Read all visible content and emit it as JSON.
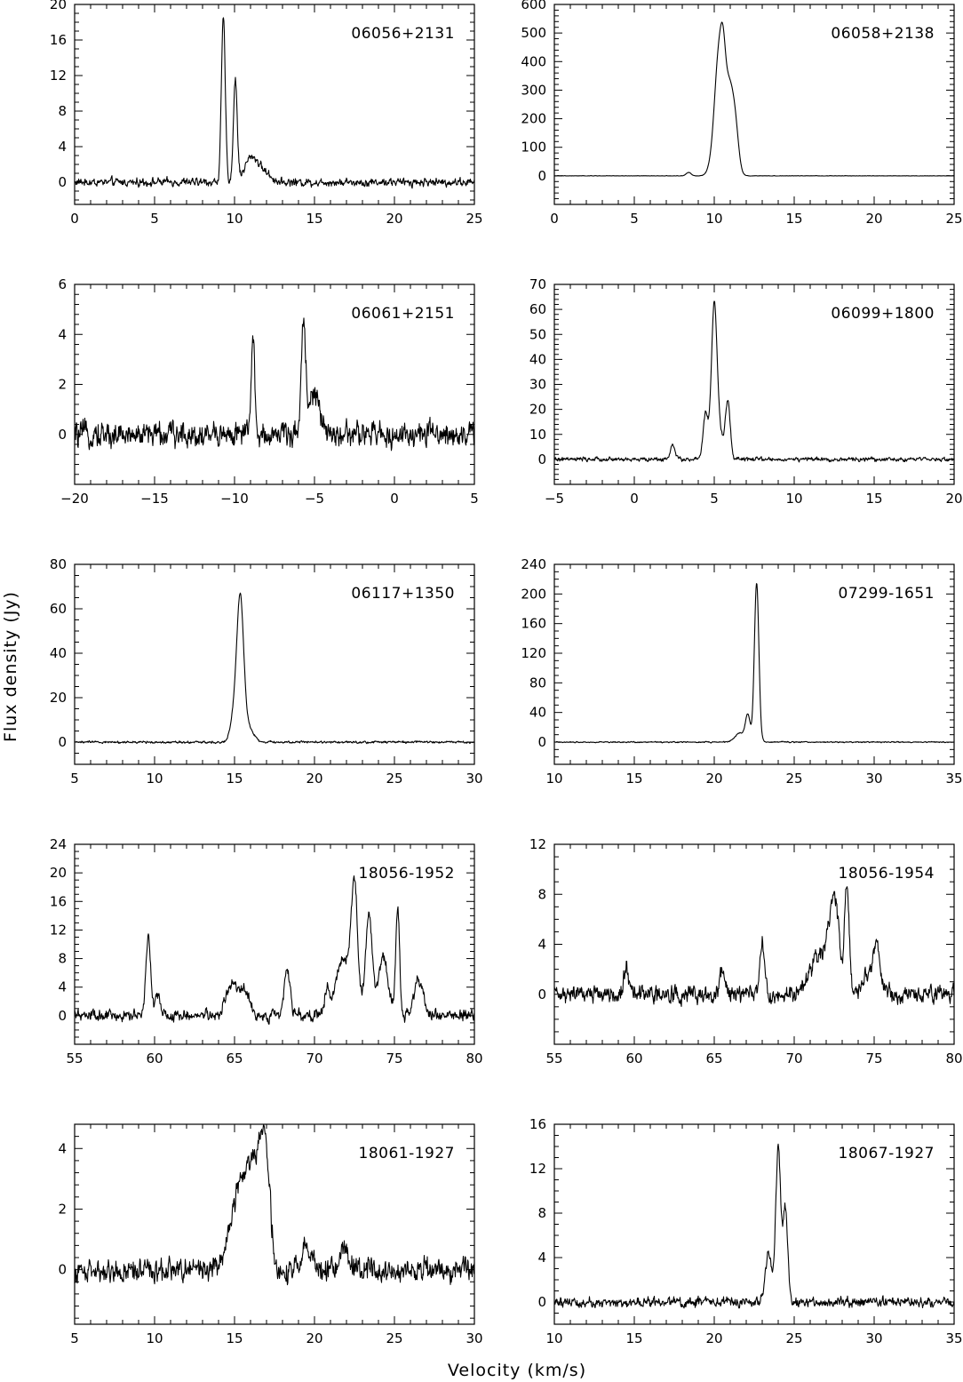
{
  "figure": {
    "xlabel": "Velocity (km/s)",
    "ylabel": "Flux density (Jy)"
  },
  "chart_data": [
    {
      "type": "line",
      "label": "06056+2131",
      "xlim": [
        0,
        25
      ],
      "ylim": [
        -2.5,
        20
      ],
      "xticks": [
        0,
        5,
        10,
        15,
        20,
        25
      ],
      "yticks": [
        0,
        4,
        8,
        12,
        16,
        20
      ],
      "noise": 0.45,
      "baseline": 0,
      "peaks": [
        [
          9.3,
          18.5,
          0.12
        ],
        [
          10.05,
          11.3,
          0.12
        ],
        [
          11.0,
          2.4,
          0.4
        ],
        [
          11.7,
          1.2,
          0.5
        ]
      ]
    },
    {
      "type": "line",
      "label": "06058+2138",
      "xlim": [
        0,
        25
      ],
      "ylim": [
        -100,
        600
      ],
      "xticks": [
        0,
        5,
        10,
        15,
        20,
        25
      ],
      "yticks": [
        0,
        100,
        200,
        300,
        400,
        500,
        600
      ],
      "noise": 0.6,
      "baseline": 0,
      "peaks": [
        [
          10.3,
          420,
          0.28
        ],
        [
          10.95,
          300,
          0.3
        ],
        [
          10.55,
          120,
          0.15
        ],
        [
          11.35,
          90,
          0.2
        ],
        [
          8.4,
          12,
          0.15
        ],
        [
          9.8,
          18,
          0.25
        ]
      ]
    },
    {
      "type": "line",
      "label": "06061+2151",
      "xlim": [
        -20,
        5
      ],
      "ylim": [
        -2,
        6
      ],
      "xticks": [
        -20,
        -15,
        -10,
        -5,
        0,
        5
      ],
      "yticks": [
        0,
        2,
        4,
        6
      ],
      "noise": 0.5,
      "baseline": 0,
      "peaks": [
        [
          -8.85,
          4.0,
          0.1
        ],
        [
          -5.7,
          4.3,
          0.14
        ],
        [
          -5.2,
          1.4,
          0.25
        ],
        [
          -4.8,
          1.0,
          0.2
        ]
      ]
    },
    {
      "type": "line",
      "label": "06099+1800",
      "xlim": [
        -5,
        20
      ],
      "ylim": [
        -10,
        70
      ],
      "xticks": [
        -5,
        0,
        5,
        10,
        15,
        20
      ],
      "yticks": [
        0,
        10,
        20,
        30,
        40,
        50,
        60,
        70
      ],
      "noise": 0.8,
      "baseline": 0,
      "peaks": [
        [
          5.0,
          62,
          0.18
        ],
        [
          4.45,
          18,
          0.15
        ],
        [
          5.85,
          23,
          0.15
        ],
        [
          2.4,
          6,
          0.15
        ],
        [
          5.4,
          8,
          0.2
        ]
      ]
    },
    {
      "type": "line",
      "label": "06117+1350",
      "xlim": [
        5,
        30
      ],
      "ylim": [
        -10,
        80
      ],
      "xticks": [
        5,
        10,
        15,
        20,
        25,
        30
      ],
      "yticks": [
        0,
        20,
        40,
        60,
        80
      ],
      "noise": 0.5,
      "baseline": 0,
      "peaks": [
        [
          15.35,
          65,
          0.22
        ],
        [
          14.9,
          9,
          0.2
        ],
        [
          15.9,
          6,
          0.3
        ]
      ]
    },
    {
      "type": "line",
      "label": "07299-1651",
      "xlim": [
        10,
        35
      ],
      "ylim": [
        -30,
        240
      ],
      "xticks": [
        10,
        15,
        20,
        25,
        30,
        35
      ],
      "yticks": [
        0,
        40,
        80,
        120,
        160,
        200,
        240
      ],
      "noise": 0.8,
      "baseline": 0,
      "peaks": [
        [
          22.65,
          215,
          0.14
        ],
        [
          22.1,
          35,
          0.15
        ],
        [
          21.6,
          12,
          0.3
        ]
      ]
    },
    {
      "type": "line",
      "label": "18056-1952",
      "xlim": [
        55,
        80
      ],
      "ylim": [
        -4,
        24
      ],
      "xticks": [
        55,
        60,
        65,
        70,
        75,
        80
      ],
      "yticks": [
        0,
        4,
        8,
        12,
        16,
        20,
        24
      ],
      "noise": 0.8,
      "baseline": 0,
      "peaks": [
        [
          59.6,
          11,
          0.15
        ],
        [
          60.2,
          3,
          0.15
        ],
        [
          64.8,
          4.5,
          0.35
        ],
        [
          65.6,
          3.5,
          0.3
        ],
        [
          68.3,
          6.5,
          0.18
        ],
        [
          70.8,
          3.5,
          0.15
        ],
        [
          71.8,
          8,
          0.45
        ],
        [
          72.5,
          17,
          0.2
        ],
        [
          73.4,
          14,
          0.22
        ],
        [
          74.3,
          8,
          0.3
        ],
        [
          75.2,
          15,
          0.12
        ],
        [
          76.5,
          5,
          0.3
        ]
      ]
    },
    {
      "type": "line",
      "label": "18056-1954",
      "xlim": [
        55,
        80
      ],
      "ylim": [
        -4,
        12
      ],
      "xticks": [
        55,
        60,
        65,
        70,
        75,
        80
      ],
      "yticks": [
        0,
        4,
        8,
        12
      ],
      "noise": 0.7,
      "baseline": 0,
      "peaks": [
        [
          59.5,
          2.2,
          0.15
        ],
        [
          65.5,
          1.8,
          0.15
        ],
        [
          68.0,
          4.5,
          0.15
        ],
        [
          71.6,
          3.0,
          0.6
        ],
        [
          72.5,
          7.0,
          0.3
        ],
        [
          73.3,
          8.5,
          0.15
        ],
        [
          74.8,
          2.0,
          0.4
        ],
        [
          75.2,
          2.5,
          0.2
        ]
      ]
    },
    {
      "type": "line",
      "label": "18061-1927",
      "xlim": [
        5,
        30
      ],
      "ylim": [
        -1.8,
        4.8
      ],
      "xticks": [
        5,
        10,
        15,
        20,
        25,
        30
      ],
      "yticks": [
        0,
        2,
        4
      ],
      "noise": 0.38,
      "baseline": 0,
      "peaks": [
        [
          15.3,
          2.4,
          0.6
        ],
        [
          16.3,
          2.8,
          0.5
        ],
        [
          16.9,
          3.2,
          0.3
        ],
        [
          19.5,
          0.7,
          0.3
        ],
        [
          21.8,
          0.7,
          0.25
        ]
      ]
    },
    {
      "type": "line",
      "label": "18067-1927",
      "xlim": [
        10,
        35
      ],
      "ylim": [
        -2,
        16
      ],
      "xticks": [
        10,
        15,
        20,
        25,
        30,
        35
      ],
      "yticks": [
        0,
        4,
        8,
        12,
        16
      ],
      "noise": 0.45,
      "baseline": 0,
      "peaks": [
        [
          24.0,
          14,
          0.15
        ],
        [
          23.4,
          4.5,
          0.2
        ],
        [
          24.45,
          8.5,
          0.15
        ]
      ]
    }
  ]
}
